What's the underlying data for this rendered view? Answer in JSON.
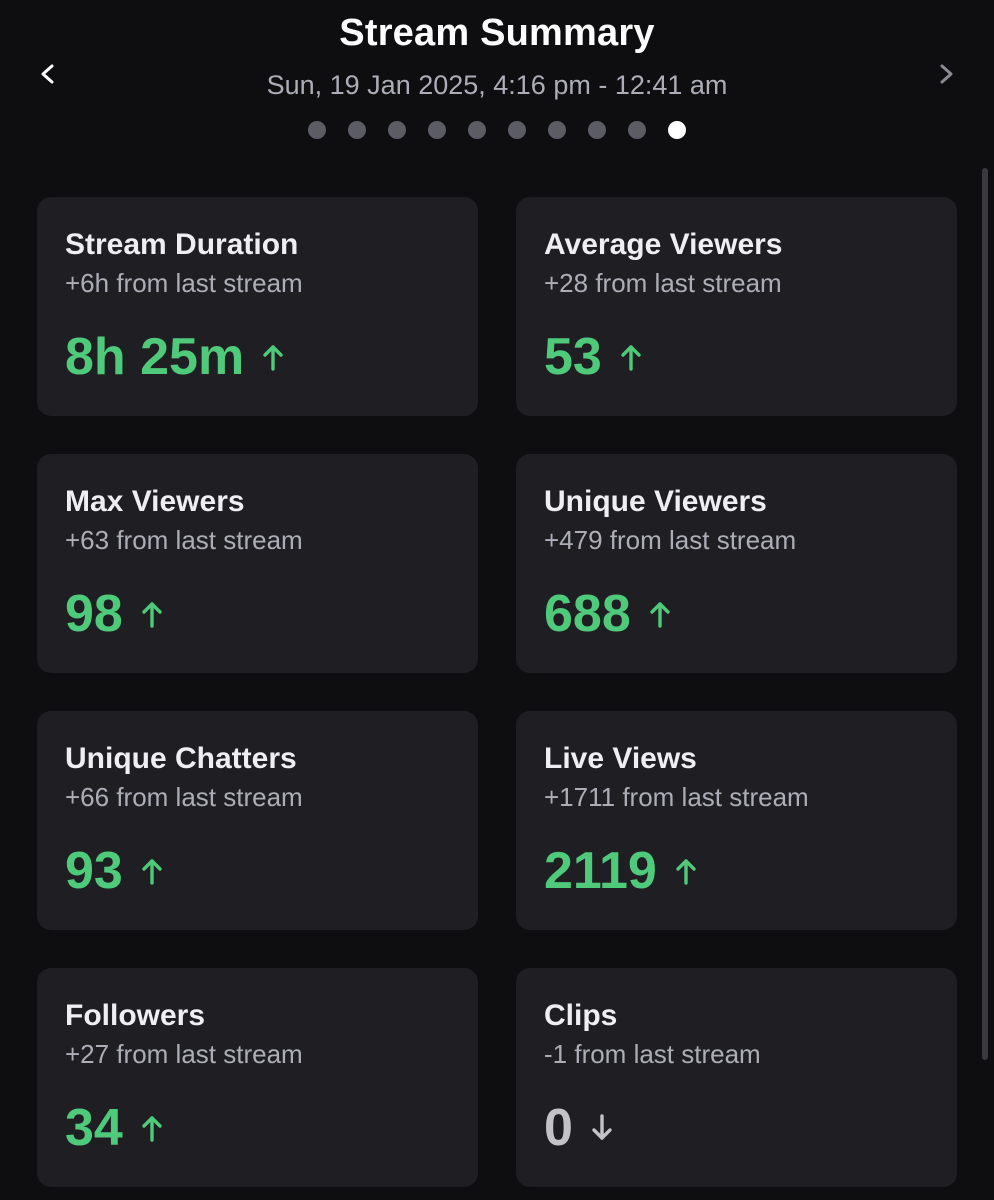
{
  "header": {
    "title": "Stream Summary",
    "subtitle": "Sun, 19 Jan 2025, 4:16 pm - 12:41 am",
    "prev_icon": "chevron-left-icon",
    "next_icon": "chevron-right-icon",
    "page_dots": {
      "count": 10,
      "active_index": 9
    }
  },
  "colors": {
    "background": "#0e0e10",
    "card": "#1f1f23",
    "positive": "#4fc97a",
    "neutral": "#c2c2c8",
    "muted_text": "#adadb8"
  },
  "cards": [
    {
      "title": "Stream Duration",
      "delta": "+6h from last stream",
      "value": "8h 25m",
      "trend": "up"
    },
    {
      "title": "Average Viewers",
      "delta": "+28 from last stream",
      "value": "53",
      "trend": "up"
    },
    {
      "title": "Max Viewers",
      "delta": "+63 from last stream",
      "value": "98",
      "trend": "up"
    },
    {
      "title": "Unique Viewers",
      "delta": "+479 from last stream",
      "value": "688",
      "trend": "up"
    },
    {
      "title": "Unique Chatters",
      "delta": "+66 from last stream",
      "value": "93",
      "trend": "up"
    },
    {
      "title": "Live Views",
      "delta": "+1711 from last stream",
      "value": "2119",
      "trend": "up"
    },
    {
      "title": "Followers",
      "delta": "+27 from last stream",
      "value": "34",
      "trend": "up"
    },
    {
      "title": "Clips",
      "delta": "-1 from last stream",
      "value": "0",
      "trend": "down"
    }
  ]
}
